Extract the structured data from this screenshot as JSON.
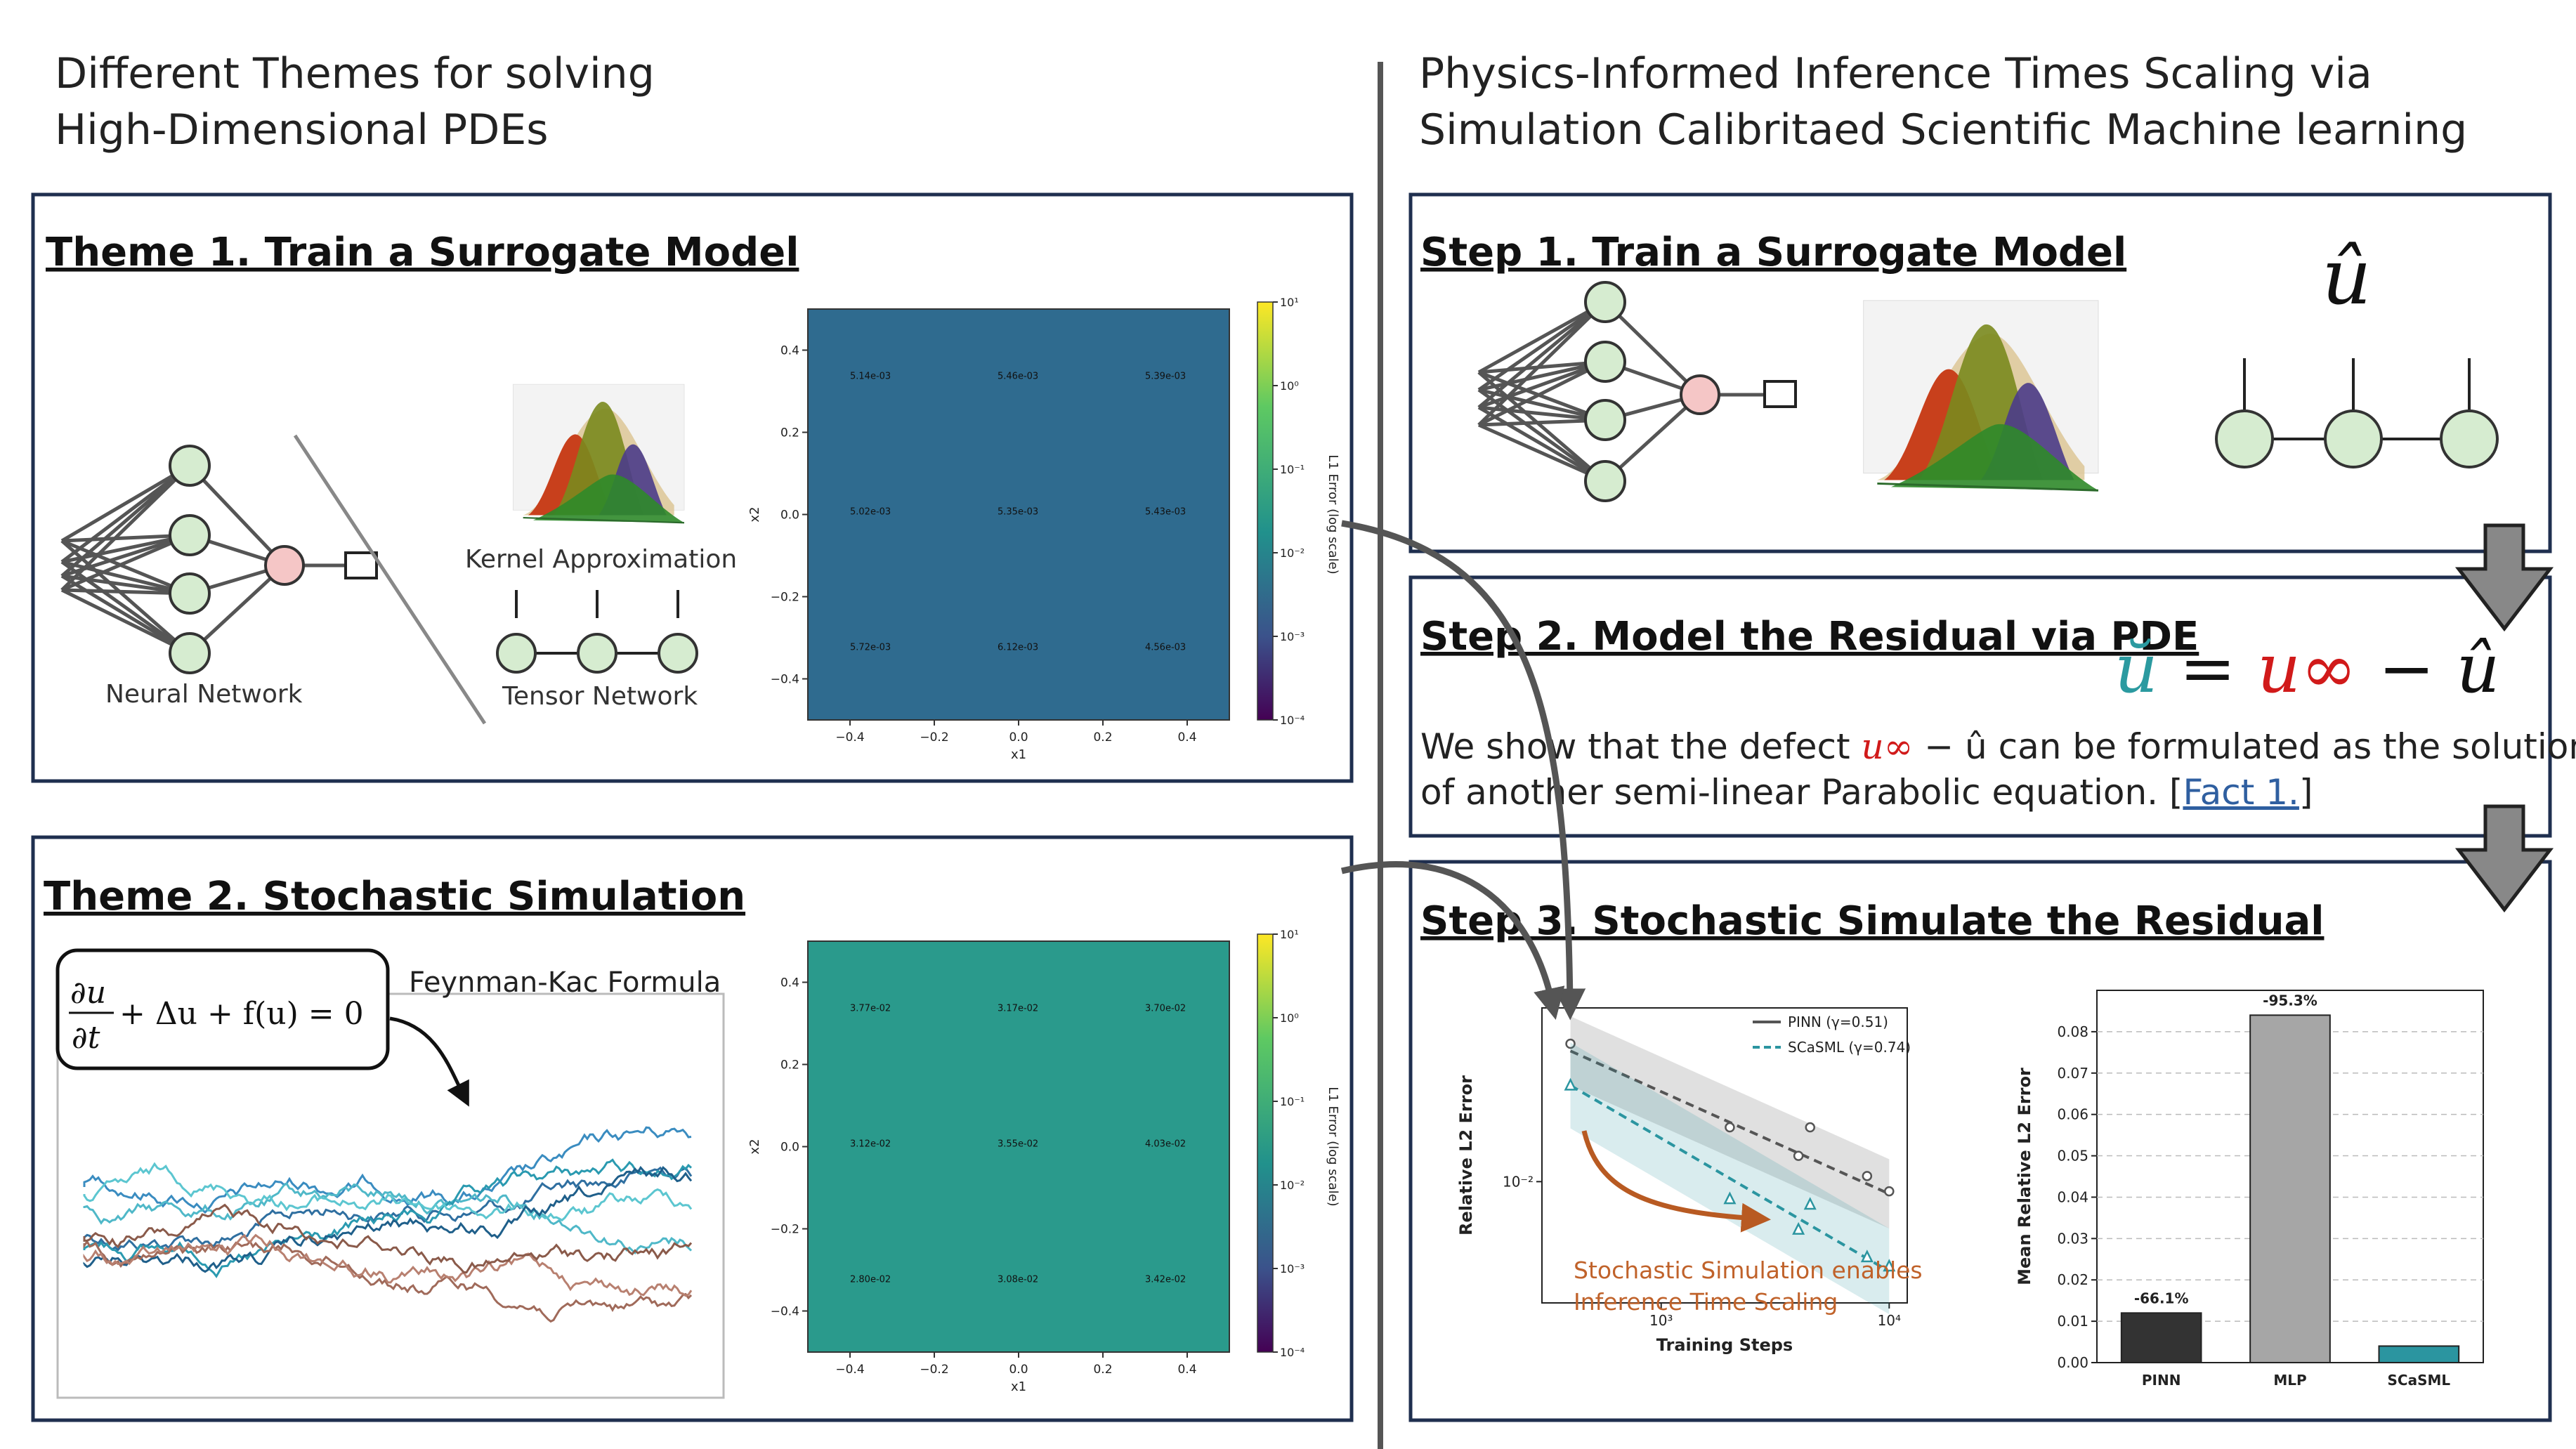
{
  "left_header": {
    "line1": "Different Themes for solving",
    "line2": "High-Dimensional PDEs"
  },
  "right_header": {
    "line1": "Physics-Informed Inference Times Scaling via",
    "line2": "Simulation Calibritaed Scientific Machine learning"
  },
  "theme1": {
    "title": "Theme 1. Train a Surrogate Model",
    "nn_label": "Neural Network",
    "kernel_label": "Kernel Approximation",
    "tensor_label": "Tensor Network",
    "heatmap": {
      "x_ticks": [
        "−0.4",
        "−0.2",
        "0.0",
        "0.2",
        "0.4"
      ],
      "y_ticks": [
        "0.4",
        "0.2",
        "0.0",
        "−0.2",
        "−0.4"
      ],
      "xlabel": "x1",
      "ylabel": "x2",
      "cells": [
        [
          "5.14e-03",
          "5.46e-03",
          "5.39e-03"
        ],
        [
          "5.02e-03",
          "5.35e-03",
          "5.43e-03"
        ],
        [
          "5.72e-03",
          "6.12e-03",
          "4.56e-03"
        ]
      ],
      "fill": "#2f6b8f",
      "colorbar_label": "L1 Error (log scale)",
      "colorbar_ticks": [
        "10¹",
        "10⁰",
        "10⁻¹",
        "10⁻²",
        "10⁻³",
        "10⁻⁴"
      ]
    }
  },
  "theme2": {
    "title": "Theme 2. Stochastic Simulation",
    "equation": "∂u/∂t + Δu + f(u) = 0",
    "eq_num": "∂u",
    "eq_den": "∂t",
    "eq_rest": "+ Δu + f(u) = 0",
    "fk_label": "Feynman-Kac Formula",
    "heatmap": {
      "x_ticks": [
        "−0.4",
        "−0.2",
        "0.0",
        "0.2",
        "0.4"
      ],
      "y_ticks": [
        "0.4",
        "0.2",
        "0.0",
        "−0.2",
        "−0.4"
      ],
      "xlabel": "x1",
      "ylabel": "x2",
      "cells": [
        [
          "3.77e-02",
          "3.17e-02",
          "3.70e-02"
        ],
        [
          "3.12e-02",
          "3.55e-02",
          "4.03e-02"
        ],
        [
          "2.80e-02",
          "3.08e-02",
          "3.42e-02"
        ]
      ],
      "fill": "#2a9a8c",
      "colorbar_label": "L1 Error (log scale)",
      "colorbar_ticks": [
        "10¹",
        "10⁰",
        "10⁻¹",
        "10⁻²",
        "10⁻³",
        "10⁻⁴"
      ]
    }
  },
  "step1": {
    "title": "Step 1. Train a Surrogate Model",
    "symbol": "û"
  },
  "step2": {
    "title": "Step 2. Model the Residual via PDE",
    "eq_lhs": "ŭ",
    "eq_eq": " = ",
    "eq_uinf": "u∞",
    "eq_minus": " − ",
    "eq_uhat": "û",
    "desc_part1": "We show that the defect ",
    "desc_formula": "u∞",
    "desc_part2": " − û can be formulated as the solution",
    "desc_line2": "of another semi-linear Parabolic equation. [",
    "link": "Fact 1.",
    "desc_end": "]"
  },
  "step3": {
    "title": "Step 3. Stochastic Simulate the Residual",
    "annotation_line1": "Stochastic Simulation enables",
    "annotation_line2": "Inference Time Scaling"
  },
  "chart_data": [
    {
      "type": "scatter",
      "xlabel": "Training Steps",
      "ylabel": "Relative L2 Error",
      "xscale": "log",
      "yscale": "log",
      "x_tick_labels": [
        "10³",
        "10⁴"
      ],
      "y_tick_labels": [
        "10⁻²"
      ],
      "series": [
        {
          "name": "PINN (γ=0.51)",
          "color": "#555555",
          "x": [
            400,
            2000,
            4000,
            4500,
            8000,
            10000
          ],
          "y": [
            0.033,
            0.016,
            0.0125,
            0.016,
            0.0105,
            0.0092
          ],
          "fit_start": [
            400,
            0.031
          ],
          "fit_end": [
            10000,
            0.009
          ]
        },
        {
          "name": "SCaSML (γ=0.74)",
          "color": "#2b95a0",
          "x": [
            400,
            2000,
            4000,
            4500,
            8000,
            10000
          ],
          "y": [
            0.023,
            0.0086,
            0.0066,
            0.0082,
            0.0052,
            0.0048
          ],
          "fit_start": [
            400,
            0.023
          ],
          "fit_end": [
            10000,
            0.0046
          ]
        }
      ]
    },
    {
      "type": "bar",
      "categories": [
        "PINN",
        "MLP",
        "SCaSML"
      ],
      "values": [
        0.012,
        0.084,
        0.004
      ],
      "colors": [
        "#333333",
        "#a6a6a6",
        "#2b95a0"
      ],
      "labels": [
        "-66.1%",
        "-95.3%",
        ""
      ],
      "ylabel": "Mean Relative L2 Error",
      "ylim": [
        0,
        0.09
      ],
      "y_ticks": [
        "0.00",
        "0.01",
        "0.02",
        "0.03",
        "0.04",
        "0.05",
        "0.06",
        "0.07",
        "0.08"
      ]
    }
  ]
}
